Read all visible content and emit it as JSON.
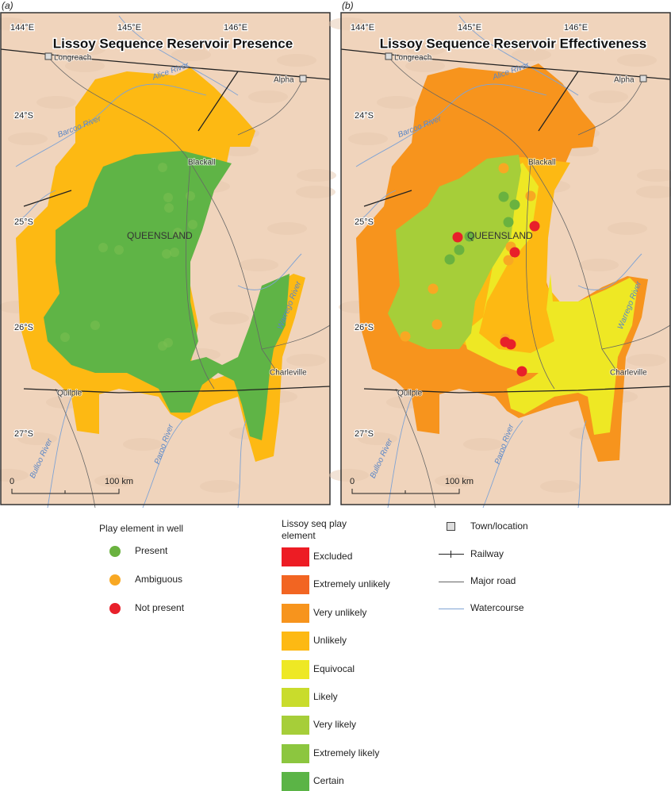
{
  "panels": [
    {
      "label": "(a)",
      "title": "Lissoy Sequence Reservoir Presence"
    },
    {
      "label": "(b)",
      "title": "Lissoy Sequence Reservoir Effectiveness"
    }
  ],
  "map_labels": {
    "longitudes": [
      "144°E",
      "145°E",
      "146°E"
    ],
    "latitudes": [
      "24°S",
      "25°S",
      "26°S",
      "27°S"
    ],
    "towns": [
      "Longreach",
      "Alpha",
      "Blackall",
      "Charleville",
      "Quilpie"
    ],
    "state": "QUEENSLAND",
    "rivers": [
      "Barcoo River",
      "Alice River",
      "Warrego River",
      "Bulloo River",
      "Paroo River"
    ],
    "scale": [
      "0",
      "100 km"
    ]
  },
  "legend": {
    "wells": {
      "title": "Play element in well",
      "items": [
        {
          "label": "Present",
          "color": "#6ab23f"
        },
        {
          "label": "Ambiguous",
          "color": "#f8a823"
        },
        {
          "label": "Not present",
          "color": "#e8202a"
        }
      ]
    },
    "play": {
      "title": "Lissoy seq play element",
      "items": [
        {
          "label": "Excluded",
          "color": "#ed1c24"
        },
        {
          "label": "Extremely unlikely",
          "color": "#f26522"
        },
        {
          "label": "Very unlikely",
          "color": "#f7941d"
        },
        {
          "label": "Unlikely",
          "color": "#fdb913"
        },
        {
          "label": "Equivocal",
          "color": "#eee824"
        },
        {
          "label": "Likely",
          "color": "#c9dc2c"
        },
        {
          "label": "Very likely",
          "color": "#a6ce39"
        },
        {
          "label": "Extremely likely",
          "color": "#8cc63f"
        },
        {
          "label": "Certain",
          "color": "#5bb446"
        }
      ]
    },
    "symbols": [
      "Town/location",
      "Railway",
      "Major road",
      "Watercourse"
    ]
  }
}
